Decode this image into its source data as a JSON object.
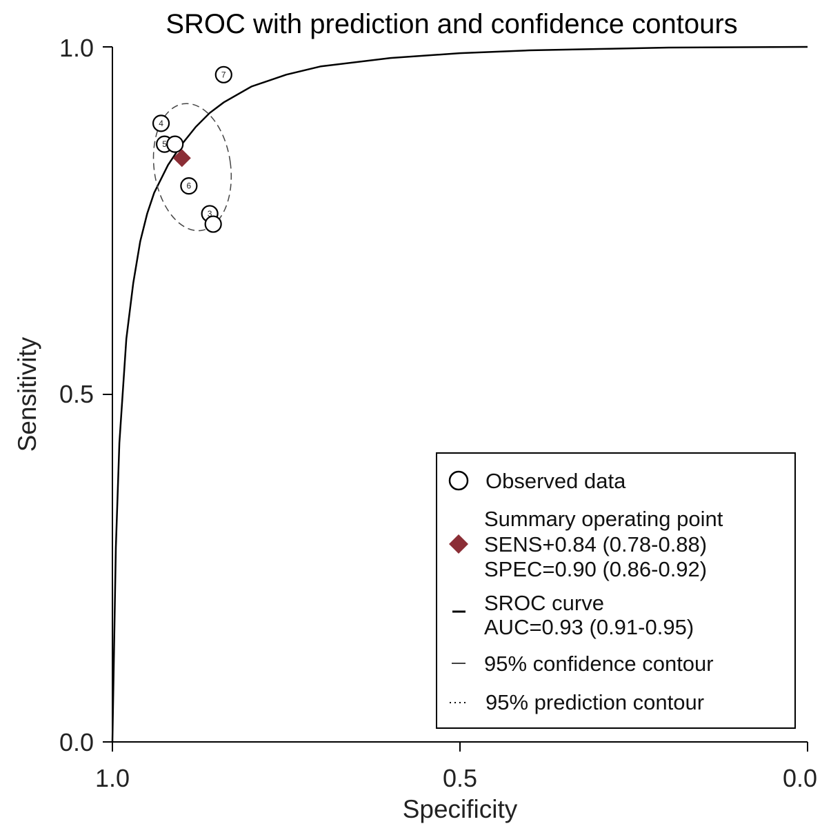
{
  "chart_data": {
    "type": "scatter",
    "title": "SROC with prediction and confidence contours",
    "xlabel": "Specificity",
    "ylabel": "Sensitivity",
    "xlim": [
      1.0,
      0.0
    ],
    "ylim": [
      0.0,
      1.0
    ],
    "x_reversed": true,
    "xticks": [
      "1.0",
      "0.5",
      "0.0"
    ],
    "yticks": [
      "0.0",
      "0.5",
      "1.0"
    ],
    "grid": false,
    "legend_position": "bottom-right",
    "observed_points": [
      {
        "label": "7",
        "specificity": 0.84,
        "sensitivity": 0.96
      },
      {
        "label": "4",
        "specificity": 0.93,
        "sensitivity": 0.89
      },
      {
        "label": "5",
        "specificity": 0.925,
        "sensitivity": 0.86
      },
      {
        "label": "",
        "specificity": 0.91,
        "sensitivity": 0.86
      },
      {
        "label": "6",
        "specificity": 0.89,
        "sensitivity": 0.8
      },
      {
        "label": "3",
        "specificity": 0.86,
        "sensitivity": 0.76
      },
      {
        "label": "",
        "specificity": 0.855,
        "sensitivity": 0.745
      }
    ],
    "summary_point": {
      "specificity": 0.9,
      "sensitivity": 0.84,
      "color": "#8b2e36"
    },
    "sroc_curve_points": [
      [
        1.0,
        0.0
      ],
      [
        0.995,
        0.28
      ],
      [
        0.99,
        0.43
      ],
      [
        0.98,
        0.58
      ],
      [
        0.97,
        0.66
      ],
      [
        0.96,
        0.72
      ],
      [
        0.95,
        0.76
      ],
      [
        0.94,
        0.79
      ],
      [
        0.92,
        0.83
      ],
      [
        0.9,
        0.86
      ],
      [
        0.88,
        0.885
      ],
      [
        0.86,
        0.905
      ],
      [
        0.84,
        0.92
      ],
      [
        0.8,
        0.943
      ],
      [
        0.75,
        0.96
      ],
      [
        0.7,
        0.972
      ],
      [
        0.6,
        0.984
      ],
      [
        0.5,
        0.991
      ],
      [
        0.4,
        0.995
      ],
      [
        0.3,
        0.997
      ],
      [
        0.2,
        0.999
      ],
      [
        0.0,
        1.0
      ]
    ],
    "confidence_contour": {
      "center_specificity": 0.885,
      "center_sensitivity": 0.827,
      "half_width_specificity": 0.055,
      "half_height_sensitivity": 0.092
    },
    "legend": {
      "observed": "Observed data",
      "summary_line1": "Summary operating point",
      "summary_line2": "SENS+0.84 (0.78-0.88)",
      "summary_line3": "SPEC=0.90 (0.86-0.92)",
      "sroc_line1": "SROC curve",
      "sroc_line2": "AUC=0.93 (0.91-0.95)",
      "confidence": "95% confidence contour",
      "prediction": "95% prediction contour"
    }
  }
}
